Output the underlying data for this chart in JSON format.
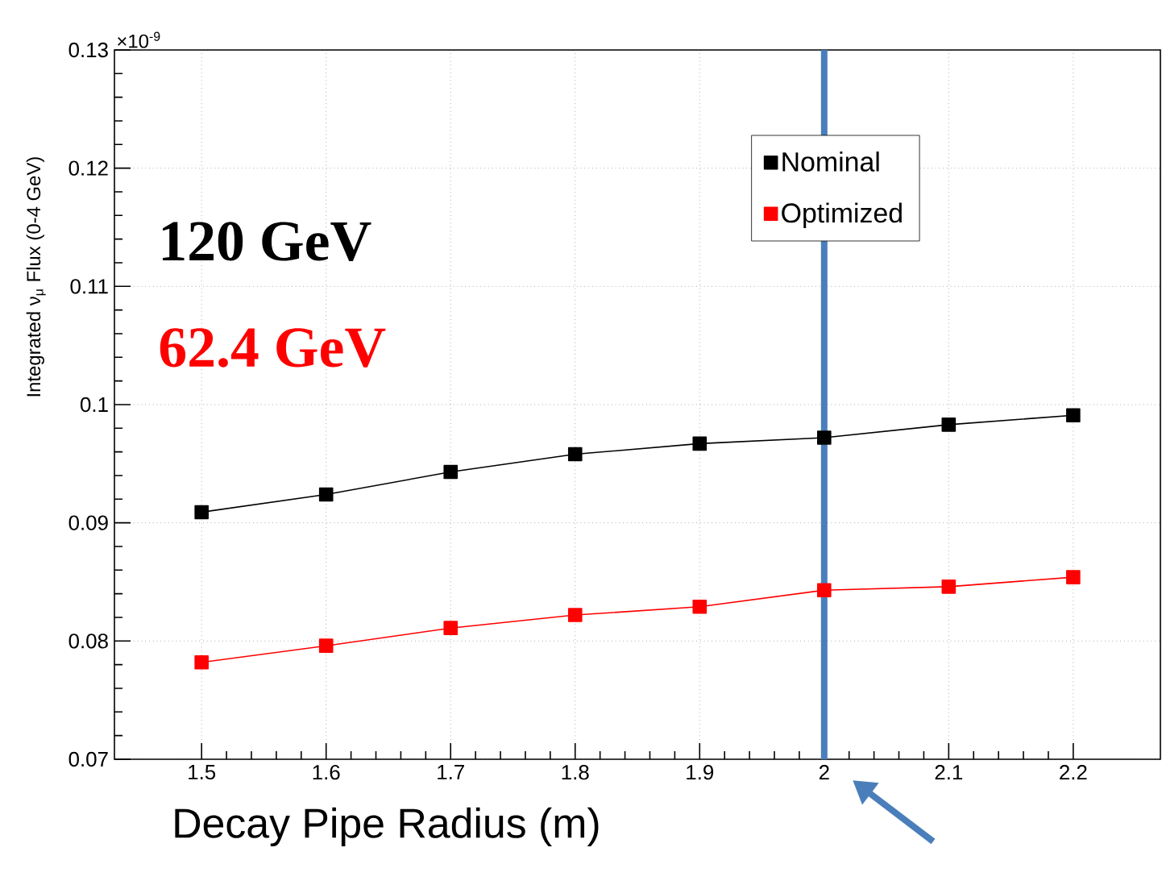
{
  "chart_data": {
    "type": "line",
    "xlabel": "Decay Pipe Radius (m)",
    "ylabel": "Integrated ν$_{μ}$ Flux (0-4 GeV)",
    "x": [
      1.5,
      1.6,
      1.7,
      1.8,
      1.9,
      2.0,
      2.1,
      2.2
    ],
    "series": [
      {
        "name": "Nominal",
        "color": "#000000",
        "values": [
          0.0909,
          0.0924,
          0.0943,
          0.0958,
          0.0967,
          0.0972,
          0.0983,
          0.0991
        ]
      },
      {
        "name": "Optimized",
        "color": "#ff0000",
        "values": [
          0.0782,
          0.0796,
          0.0811,
          0.0822,
          0.0829,
          0.0843,
          0.0846,
          0.0854
        ]
      }
    ],
    "xlim": [
      1.43,
      2.27
    ],
    "ylim": [
      0.07,
      0.13
    ],
    "xticks": [
      1.5,
      1.6,
      1.7,
      1.8,
      1.9,
      {
        "value": 2.0,
        "label": "2"
      },
      2.1,
      2.2
    ],
    "yticks": [
      0.07,
      0.08,
      0.09,
      0.1,
      0.11,
      0.12,
      0.13
    ],
    "ref_lines": [
      {
        "axis": "x",
        "value": 2.0,
        "color": "#4a7ebb"
      }
    ],
    "annotations": [
      "×10$^{-9}$",
      "120 GeV",
      "62.4 GeV"
    ],
    "grid": true,
    "legend": "top right",
    "marker": "square",
    "line_style": "solid"
  }
}
